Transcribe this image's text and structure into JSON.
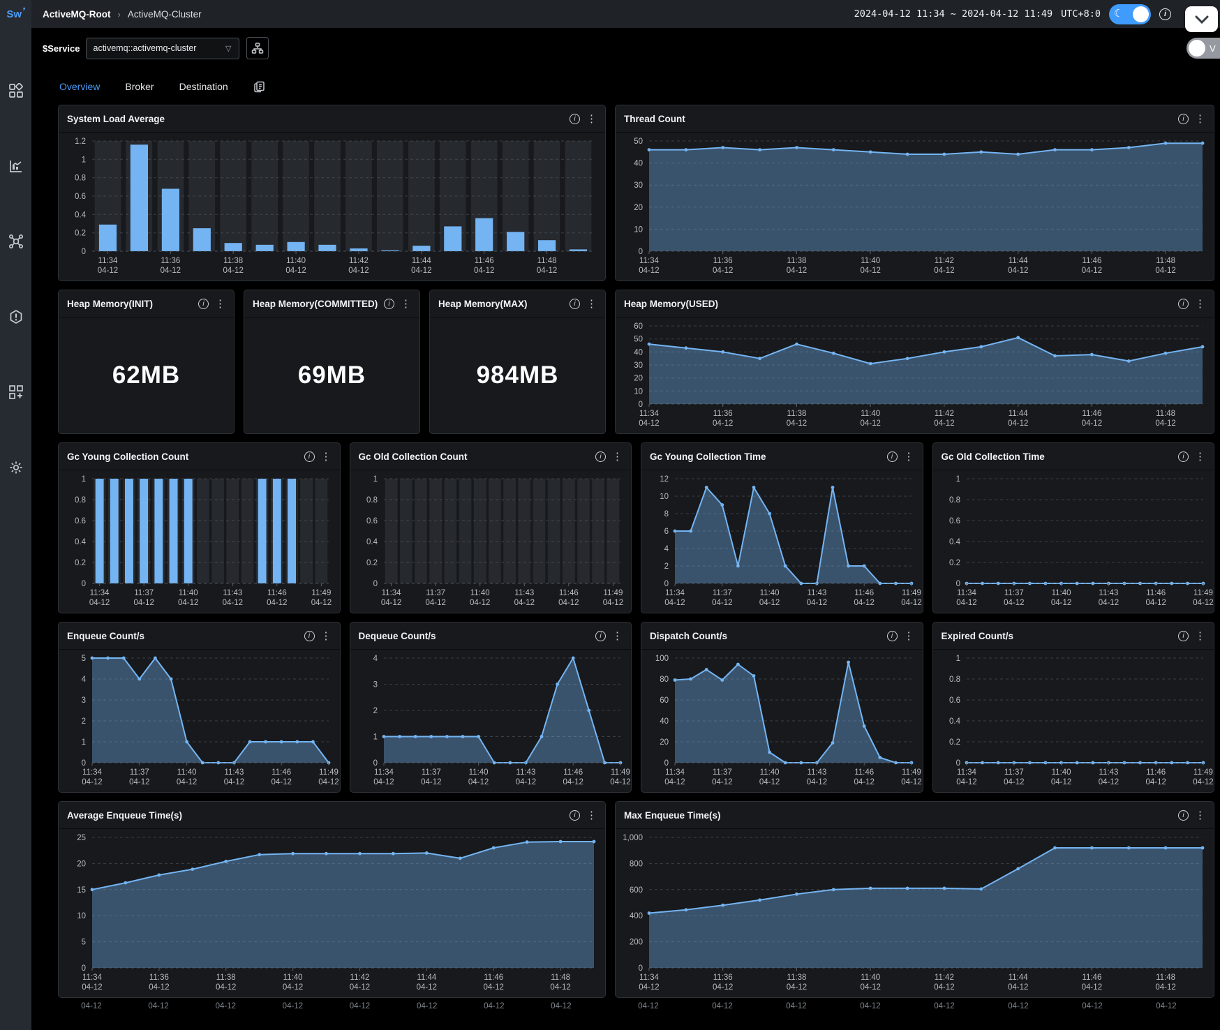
{
  "topbar": {
    "logo": "Sw",
    "breadcrumb": {
      "root": "ActiveMQ-Root",
      "separator": "›",
      "current": "ActiveMQ-Cluster"
    },
    "time_range": "2024-04-12 11:34 ~ 2024-04-12 11:49",
    "timezone": "UTC+8:0"
  },
  "service_bar": {
    "label": "$Service",
    "value": "activemq::activemq-cluster",
    "version_toggle_label": "V"
  },
  "tabs": {
    "items": [
      {
        "label": "Overview",
        "active": true
      },
      {
        "label": "Broker",
        "active": false
      },
      {
        "label": "Destination",
        "active": false
      }
    ]
  },
  "colors": {
    "accent_blue": "#74b4f2",
    "area_fill_opacity": "0.38",
    "band_fill": "#26292e",
    "grid_line": "#5a6068",
    "axis_text": "#b8bdc3",
    "tab_active": "#4a9bfa",
    "card_bg": "#17191c",
    "page_bg": "#000000",
    "toggle_blue": "#3f9bfc"
  },
  "stats": {
    "heap_init": {
      "title": "Heap Memory(INIT)",
      "value": "62MB"
    },
    "heap_committed": {
      "title": "Heap Memory(COMMITTED)",
      "value": "69MB"
    },
    "heap_max": {
      "title": "Heap Memory(MAX)",
      "value": "984MB"
    }
  },
  "x_axis": {
    "date": "04-12",
    "wide_times": [
      "11:34",
      "11:36",
      "11:38",
      "11:40",
      "11:42",
      "11:44",
      "11:46",
      "11:48"
    ],
    "narrow_times": [
      "11:34",
      "11:37",
      "11:40",
      "11:43",
      "11:46",
      "11:49"
    ]
  },
  "chart_data": {
    "system_load_average": {
      "type": "bar",
      "title": "System Load Average",
      "xmode": "wide",
      "ymax": 1.2,
      "ytick_vals": [
        0,
        0.2,
        0.4,
        0.6,
        0.8,
        1,
        1.2
      ],
      "ytick_labels": [
        "0",
        "0.2",
        "0.4",
        "0.6",
        "0.8",
        "1",
        "1.2"
      ],
      "values": [
        0.29,
        1.16,
        0.68,
        0.25,
        0.09,
        0.07,
        0.1,
        0.07,
        0.03,
        0.01,
        0.06,
        0.27,
        0.36,
        0.21,
        0.12,
        0.02
      ]
    },
    "thread_count": {
      "type": "area",
      "title": "Thread Count",
      "xmode": "wide",
      "ymax": 50,
      "ytick_vals": [
        0,
        10,
        20,
        30,
        40,
        50
      ],
      "ytick_labels": [
        "0",
        "10",
        "20",
        "30",
        "40",
        "50"
      ],
      "values": [
        46,
        46,
        47,
        46,
        47,
        46,
        45,
        44,
        44,
        45,
        44,
        46,
        46,
        47,
        49,
        49
      ]
    },
    "heap_used": {
      "type": "area",
      "title": "Heap Memory(USED)",
      "xmode": "wide",
      "ymax": 60,
      "ytick_vals": [
        0,
        10,
        20,
        30,
        40,
        50,
        60
      ],
      "ytick_labels": [
        "0",
        "10",
        "20",
        "30",
        "40",
        "50",
        "60"
      ],
      "values": [
        46,
        43,
        40,
        35,
        46,
        39,
        31,
        35,
        40,
        44,
        51,
        37,
        38,
        33,
        39,
        44
      ]
    },
    "gc_young_collection_count": {
      "type": "bar",
      "title": "Gc Young Collection Count",
      "xmode": "narrow",
      "ymax": 1,
      "ytick_vals": [
        0,
        0.2,
        0.4,
        0.6,
        0.8,
        1
      ],
      "ytick_labels": [
        "0",
        "0.2",
        "0.4",
        "0.6",
        "0.8",
        "1"
      ],
      "values": [
        1,
        1,
        1,
        1,
        1,
        1,
        1,
        0,
        0,
        0,
        0,
        1,
        1,
        1,
        0,
        0
      ]
    },
    "gc_old_collection_count": {
      "type": "bar",
      "title": "Gc Old Collection Count",
      "xmode": "narrow",
      "ymax": 1,
      "ytick_vals": [
        0,
        0.2,
        0.4,
        0.6,
        0.8,
        1
      ],
      "ytick_labels": [
        "0",
        "0.2",
        "0.4",
        "0.6",
        "0.8",
        "1"
      ],
      "values": [
        0,
        0,
        0,
        0,
        0,
        0,
        0,
        0,
        0,
        0,
        0,
        0,
        0,
        0,
        0,
        0
      ]
    },
    "gc_young_collection_time": {
      "type": "area",
      "title": "Gc Young Collection Time",
      "xmode": "narrow",
      "ymax": 12,
      "ytick_vals": [
        0,
        2,
        4,
        6,
        8,
        10,
        12
      ],
      "ytick_labels": [
        "0",
        "2",
        "4",
        "6",
        "8",
        "10",
        "12"
      ],
      "values": [
        6,
        6,
        11,
        9,
        2,
        11,
        8,
        2,
        0,
        0,
        11,
        2,
        2,
        0,
        0,
        0
      ]
    },
    "gc_old_collection_time": {
      "type": "area",
      "title": "Gc Old Collection Time",
      "xmode": "narrow",
      "ymax": 1,
      "ytick_vals": [
        0,
        0.2,
        0.4,
        0.6,
        0.8,
        1
      ],
      "ytick_labels": [
        "0",
        "0.2",
        "0.4",
        "0.6",
        "0.8",
        "1"
      ],
      "values": [
        0,
        0,
        0,
        0,
        0,
        0,
        0,
        0,
        0,
        0,
        0,
        0,
        0,
        0,
        0,
        0
      ]
    },
    "enqueue_count": {
      "type": "area",
      "title": "Enqueue Count/s",
      "xmode": "narrow",
      "ymax": 5,
      "ytick_vals": [
        0,
        1,
        2,
        3,
        4,
        5
      ],
      "ytick_labels": [
        "0",
        "1",
        "2",
        "3",
        "4",
        "5"
      ],
      "values": [
        5,
        5,
        5,
        4,
        5,
        4,
        1,
        0,
        0,
        0,
        1,
        1,
        1,
        1,
        1,
        0
      ]
    },
    "dequeue_count": {
      "type": "area",
      "title": "Dequeue Count/s",
      "xmode": "narrow",
      "ymax": 4,
      "ytick_vals": [
        0,
        1,
        2,
        3,
        4
      ],
      "ytick_labels": [
        "0",
        "1",
        "2",
        "3",
        "4"
      ],
      "values": [
        1,
        1,
        1,
        1,
        1,
        1,
        1,
        0,
        0,
        0,
        1,
        3,
        4,
        2,
        0,
        0
      ]
    },
    "dispatch_count": {
      "type": "area",
      "title": "Dispatch Count/s",
      "xmode": "narrow",
      "ymax": 100,
      "ytick_vals": [
        0,
        20,
        40,
        60,
        80,
        100
      ],
      "ytick_labels": [
        "0",
        "20",
        "40",
        "60",
        "80",
        "100"
      ],
      "values": [
        79,
        80,
        89,
        79,
        94,
        83,
        10,
        0,
        0,
        0,
        19,
        96,
        35,
        5,
        0,
        0
      ]
    },
    "expired_count": {
      "type": "area",
      "title": "Expired Count/s",
      "xmode": "narrow",
      "ymax": 1,
      "ytick_vals": [
        0,
        0.2,
        0.4,
        0.6,
        0.8,
        1
      ],
      "ytick_labels": [
        "0",
        "0.2",
        "0.4",
        "0.6",
        "0.8",
        "1"
      ],
      "values": [
        0,
        0,
        0,
        0,
        0,
        0,
        0,
        0,
        0,
        0,
        0,
        0,
        0,
        0,
        0,
        0
      ]
    },
    "average_enqueue_time": {
      "type": "area",
      "title": "Average Enqueue Time(s)",
      "xmode": "wide",
      "ymax": 25,
      "ytick_vals": [
        0,
        5,
        10,
        15,
        20,
        25
      ],
      "ytick_labels": [
        "0",
        "5",
        "10",
        "15",
        "20",
        "25"
      ],
      "values": [
        15,
        16.3,
        17.8,
        18.9,
        20.4,
        21.7,
        21.9,
        21.9,
        21.9,
        21.9,
        22,
        21,
        23,
        24.1,
        24.2,
        24.2
      ]
    },
    "max_enqueue_time": {
      "type": "area",
      "title": "Max Enqueue Time(s)",
      "xmode": "wide",
      "ymax": 1000,
      "ytick_vals": [
        0,
        200,
        400,
        600,
        800,
        1000
      ],
      "ytick_labels": [
        "0",
        "200",
        "400",
        "600",
        "800",
        "1,000"
      ],
      "values": [
        420,
        445,
        480,
        520,
        565,
        600,
        610,
        610,
        610,
        605,
        760,
        920,
        920,
        920,
        920,
        920
      ]
    }
  }
}
